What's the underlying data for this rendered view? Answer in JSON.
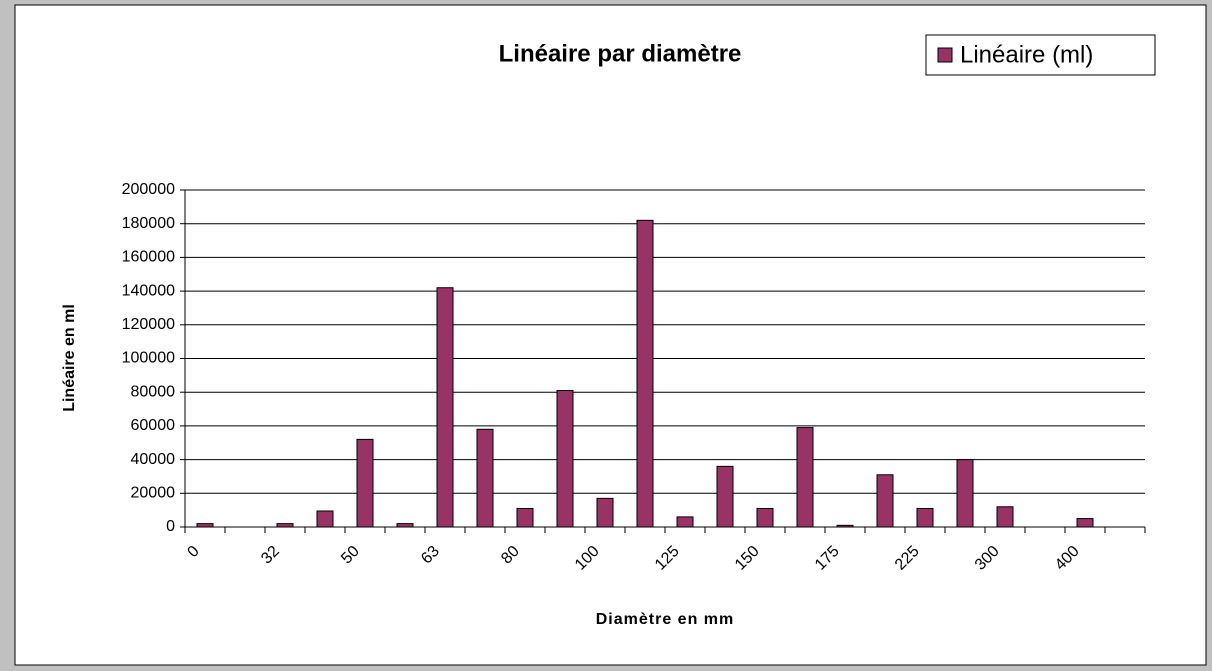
{
  "chart_data": {
    "type": "bar",
    "title": "Linéaire par diamètre",
    "x_label": "Diamètre en mm",
    "y_label": "Linéaire en ml",
    "categories": [
      "0",
      null,
      "32",
      null,
      "50",
      null,
      "63",
      null,
      "80",
      null,
      "100",
      null,
      "125",
      null,
      "150",
      null,
      "175",
      null,
      "225",
      null,
      "300",
      null,
      "400",
      null
    ],
    "series": [
      {
        "name": "Linéaire (ml)",
        "color": "#993366",
        "values": [
          2000,
          0,
          2000,
          9500,
          52000,
          2000,
          142000,
          58000,
          11000,
          81000,
          17000,
          182000,
          6000,
          36000,
          11000,
          59000,
          1000,
          31000,
          11000,
          40000,
          12000,
          0,
          5000,
          0
        ]
      }
    ],
    "ylim": [
      0,
      200000
    ],
    "yticks": [
      0,
      20000,
      40000,
      60000,
      80000,
      100000,
      120000,
      140000,
      160000,
      180000,
      200000
    ],
    "grid": true,
    "legend": "top-right"
  }
}
